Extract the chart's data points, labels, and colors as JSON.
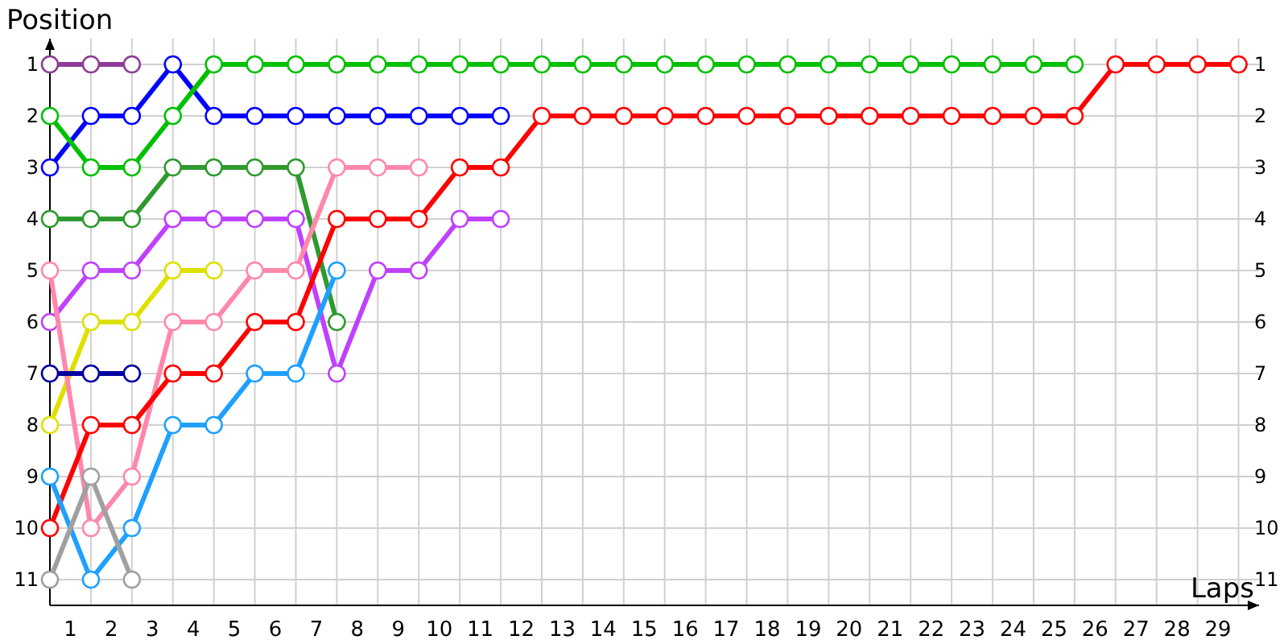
{
  "chart_data": {
    "type": "line",
    "xlabel": "Laps",
    "ylabel": "Position",
    "x": [
      0,
      1,
      2,
      3,
      4,
      5,
      6,
      7,
      8,
      9,
      10,
      11,
      12,
      13,
      14,
      15,
      16,
      17,
      18,
      19,
      20,
      21,
      22,
      23,
      24,
      25,
      26,
      27,
      28,
      29
    ],
    "xlim": [
      0,
      29.5
    ],
    "xticks": [
      {
        "value": 0,
        "label": null
      },
      {
        "value": 0.5,
        "label": "1"
      },
      {
        "value": 1,
        "label": null
      },
      {
        "value": 1.5,
        "label": "2"
      },
      {
        "value": 2,
        "label": null
      },
      {
        "value": 2.5,
        "label": "3"
      },
      {
        "value": 3,
        "label": null
      },
      {
        "value": 3.5,
        "label": "4"
      },
      {
        "value": 4,
        "label": null
      },
      {
        "value": 4.5,
        "label": "5"
      },
      {
        "value": 5,
        "label": null
      },
      {
        "value": 5.5,
        "label": "6"
      },
      {
        "value": 6,
        "label": null
      },
      {
        "value": 6.5,
        "label": "7"
      },
      {
        "value": 7,
        "label": null
      },
      {
        "value": 7.5,
        "label": "8"
      },
      {
        "value": 8,
        "label": null
      },
      {
        "value": 8.5,
        "label": "9"
      },
      {
        "value": 9,
        "label": null
      },
      {
        "value": 9.5,
        "label": "10"
      },
      {
        "value": 10,
        "label": null
      },
      {
        "value": 10.5,
        "label": "11"
      },
      {
        "value": 11,
        "label": null
      },
      {
        "value": 11.5,
        "label": "12"
      },
      {
        "value": 12,
        "label": null
      },
      {
        "value": 12.5,
        "label": "13"
      },
      {
        "value": 13,
        "label": null
      },
      {
        "value": 13.5,
        "label": "14"
      },
      {
        "value": 14,
        "label": null
      },
      {
        "value": 14.5,
        "label": "15"
      },
      {
        "value": 15,
        "label": null
      },
      {
        "value": 15.5,
        "label": "16"
      },
      {
        "value": 16,
        "label": null
      },
      {
        "value": 16.5,
        "label": "17"
      },
      {
        "value": 17,
        "label": null
      },
      {
        "value": 17.5,
        "label": "18"
      },
      {
        "value": 18,
        "label": null
      },
      {
        "value": 18.5,
        "label": "19"
      },
      {
        "value": 19,
        "label": null
      },
      {
        "value": 19.5,
        "label": "20"
      },
      {
        "value": 20,
        "label": null
      },
      {
        "value": 20.5,
        "label": "21"
      },
      {
        "value": 21,
        "label": null
      },
      {
        "value": 21.5,
        "label": "22"
      },
      {
        "value": 22,
        "label": null
      },
      {
        "value": 22.5,
        "label": "23"
      },
      {
        "value": 23,
        "label": null
      },
      {
        "value": 23.5,
        "label": "24"
      },
      {
        "value": 24,
        "label": null
      },
      {
        "value": 24.5,
        "label": "25"
      },
      {
        "value": 25,
        "label": null
      },
      {
        "value": 25.5,
        "label": "26"
      },
      {
        "value": 26,
        "label": null
      },
      {
        "value": 26.5,
        "label": "27"
      },
      {
        "value": 27,
        "label": null
      },
      {
        "value": 27.5,
        "label": "28"
      },
      {
        "value": 28,
        "label": null
      },
      {
        "value": 28.5,
        "label": "29"
      },
      {
        "value": 29,
        "label": null
      }
    ],
    "ylim": [
      11.5,
      0.5
    ],
    "yticks": [
      1,
      2,
      3,
      4,
      5,
      6,
      7,
      8,
      9,
      10,
      11
    ],
    "y2lim": [
      11.5,
      0.5
    ],
    "y2ticks": [
      1,
      2,
      3,
      4,
      5,
      6,
      7,
      8,
      9,
      10,
      11
    ],
    "grid": true,
    "marker": "circle",
    "line_style": "solid",
    "series": [
      {
        "color": "#8e3c98",
        "values": [
          1,
          1,
          1,
          null,
          null,
          null,
          null,
          null,
          null,
          null,
          null,
          null,
          null,
          null,
          null,
          null,
          null,
          null,
          null,
          null,
          null,
          null,
          null,
          null,
          null,
          null,
          null,
          null,
          null,
          null
        ]
      },
      {
        "color": "#0000ff",
        "values": [
          3,
          2,
          2,
          1,
          2,
          2,
          2,
          2,
          2,
          2,
          2,
          2,
          null,
          null,
          null,
          null,
          null,
          null,
          null,
          null,
          null,
          null,
          null,
          null,
          null,
          null,
          null,
          null,
          null,
          null
        ]
      },
      {
        "color": "#00c000",
        "values": [
          2,
          3,
          3,
          2,
          1,
          1,
          1,
          1,
          1,
          1,
          1,
          1,
          1,
          1,
          1,
          1,
          1,
          1,
          1,
          1,
          1,
          1,
          1,
          1,
          1,
          1,
          null,
          null,
          null,
          null
        ]
      },
      {
        "color": "#2e9a2e",
        "values": [
          4,
          4,
          4,
          3,
          3,
          3,
          3,
          6,
          null,
          null,
          null,
          null,
          null,
          null,
          null,
          null,
          null,
          null,
          null,
          null,
          null,
          null,
          null,
          null,
          null,
          null,
          null,
          null,
          null,
          null
        ]
      },
      {
        "color": "#c040ff",
        "values": [
          6,
          5,
          5,
          4,
          4,
          4,
          4,
          7,
          5,
          5,
          4,
          4,
          null,
          null,
          null,
          null,
          null,
          null,
          null,
          null,
          null,
          null,
          null,
          null,
          null,
          null,
          null,
          null,
          null,
          null
        ]
      },
      {
        "color": "#e0e000",
        "values": [
          8,
          6,
          6,
          5,
          5,
          null,
          null,
          null,
          null,
          null,
          null,
          null,
          null,
          null,
          null,
          null,
          null,
          null,
          null,
          null,
          null,
          null,
          null,
          null,
          null,
          null,
          null,
          null,
          null,
          null
        ]
      },
      {
        "color": "#ff88aa",
        "values": [
          5,
          10,
          9,
          6,
          6,
          5,
          5,
          3,
          3,
          3,
          null,
          null,
          null,
          null,
          null,
          null,
          null,
          null,
          null,
          null,
          null,
          null,
          null,
          null,
          null,
          null,
          null,
          null,
          null,
          null
        ]
      },
      {
        "color": "#ff0000",
        "values": [
          10,
          8,
          8,
          7,
          7,
          6,
          6,
          4,
          4,
          4,
          3,
          3,
          2,
          2,
          2,
          2,
          2,
          2,
          2,
          2,
          2,
          2,
          2,
          2,
          2,
          2,
          1,
          1,
          1,
          1
        ]
      },
      {
        "color": "#0000a0",
        "values": [
          7,
          7,
          7,
          null,
          null,
          null,
          null,
          null,
          null,
          null,
          null,
          null,
          null,
          null,
          null,
          null,
          null,
          null,
          null,
          null,
          null,
          null,
          null,
          null,
          null,
          null,
          null,
          null,
          null,
          null
        ]
      },
      {
        "color": "#1ea0ff",
        "values": [
          9,
          11,
          10,
          8,
          8,
          7,
          7,
          5,
          null,
          null,
          null,
          null,
          null,
          null,
          null,
          null,
          null,
          null,
          null,
          null,
          null,
          null,
          null,
          null,
          null,
          null,
          null,
          null,
          null,
          null
        ]
      },
      {
        "color": "#a0a0a0",
        "values": [
          11,
          9,
          11,
          null,
          null,
          null,
          null,
          null,
          null,
          null,
          null,
          null,
          null,
          null,
          null,
          null,
          null,
          null,
          null,
          null,
          null,
          null,
          null,
          null,
          null,
          null,
          null,
          null,
          null,
          null
        ]
      }
    ]
  }
}
